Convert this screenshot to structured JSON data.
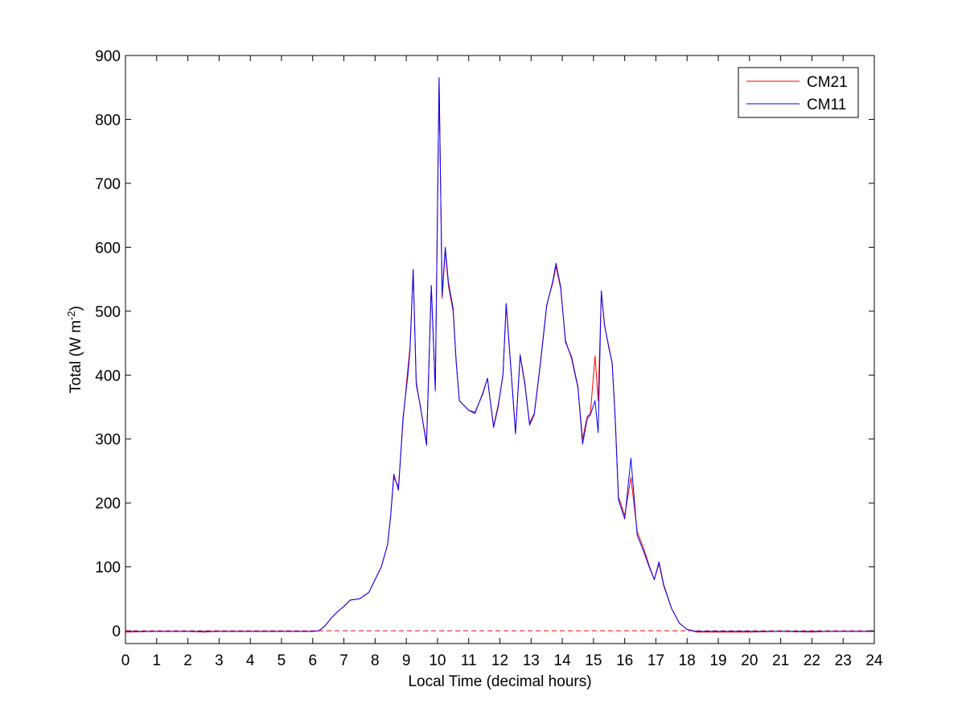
{
  "chart_data": {
    "type": "line",
    "title": "",
    "xlabel": "Local Time (decimal hours)",
    "ylabel_main": "Total (W m",
    "ylabel_sup": "-2",
    "ylabel_close": ")",
    "xlim": [
      0,
      24
    ],
    "ylim": [
      -20,
      900
    ],
    "xticks": [
      0,
      1,
      2,
      3,
      4,
      5,
      6,
      7,
      8,
      9,
      10,
      11,
      12,
      13,
      14,
      15,
      16,
      17,
      18,
      19,
      20,
      21,
      22,
      23,
      24
    ],
    "yticks": [
      0,
      100,
      200,
      300,
      400,
      500,
      600,
      700,
      800,
      900
    ],
    "grid": false,
    "legend_position": "top-right",
    "reference_line": {
      "y": 0,
      "style": "dashed",
      "color": "#ff0000"
    },
    "series": [
      {
        "name": "CM21",
        "color": "#ff0000",
        "points": [
          [
            0,
            -2
          ],
          [
            1,
            -1
          ],
          [
            2,
            -1
          ],
          [
            2.5,
            -2
          ],
          [
            3,
            -1
          ],
          [
            4,
            -1
          ],
          [
            5,
            -1
          ],
          [
            6,
            -1
          ],
          [
            6.2,
            0
          ],
          [
            6.4,
            8
          ],
          [
            6.6,
            20
          ],
          [
            6.8,
            30
          ],
          [
            7,
            38
          ],
          [
            7.2,
            48
          ],
          [
            7.5,
            50
          ],
          [
            7.8,
            60
          ],
          [
            8,
            80
          ],
          [
            8.2,
            100
          ],
          [
            8.4,
            135
          ],
          [
            8.5,
            180
          ],
          [
            8.6,
            240
          ],
          [
            8.75,
            225
          ],
          [
            8.9,
            330
          ],
          [
            9.05,
            410
          ],
          [
            9.12,
            445
          ],
          [
            9.22,
            565
          ],
          [
            9.32,
            390
          ],
          [
            9.45,
            350
          ],
          [
            9.65,
            295
          ],
          [
            9.8,
            540
          ],
          [
            9.93,
            380
          ],
          [
            10.05,
            865
          ],
          [
            10.15,
            520
          ],
          [
            10.25,
            595
          ],
          [
            10.35,
            540
          ],
          [
            10.5,
            500
          ],
          [
            10.6,
            420
          ],
          [
            10.7,
            360
          ],
          [
            11,
            345
          ],
          [
            11.2,
            342
          ],
          [
            11.45,
            370
          ],
          [
            11.6,
            395
          ],
          [
            11.8,
            320
          ],
          [
            11.95,
            355
          ],
          [
            12.1,
            400
          ],
          [
            12.2,
            510
          ],
          [
            12.4,
            380
          ],
          [
            12.5,
            310
          ],
          [
            12.65,
            430
          ],
          [
            12.8,
            385
          ],
          [
            12.95,
            325
          ],
          [
            13.1,
            340
          ],
          [
            13.3,
            420
          ],
          [
            13.5,
            510
          ],
          [
            13.7,
            545
          ],
          [
            13.8,
            570
          ],
          [
            13.95,
            535
          ],
          [
            14.1,
            455
          ],
          [
            14.3,
            425
          ],
          [
            14.5,
            380
          ],
          [
            14.65,
            300
          ],
          [
            14.8,
            335
          ],
          [
            14.9,
            340
          ],
          [
            15.05,
            430
          ],
          [
            15.15,
            360
          ],
          [
            15.25,
            530
          ],
          [
            15.35,
            480
          ],
          [
            15.5,
            440
          ],
          [
            15.6,
            420
          ],
          [
            15.7,
            330
          ],
          [
            15.8,
            210
          ],
          [
            16,
            180
          ],
          [
            16.2,
            240
          ],
          [
            16.4,
            155
          ],
          [
            16.6,
            130
          ],
          [
            16.8,
            100
          ],
          [
            16.95,
            80
          ],
          [
            17.1,
            105
          ],
          [
            17.25,
            70
          ],
          [
            17.5,
            35
          ],
          [
            17.75,
            12
          ],
          [
            18,
            2
          ],
          [
            18.3,
            -2
          ],
          [
            19,
            -2
          ],
          [
            20,
            -2
          ],
          [
            21,
            -1
          ],
          [
            22,
            -2
          ],
          [
            22.5,
            -1
          ],
          [
            24,
            -1
          ]
        ]
      },
      {
        "name": "CM11",
        "color": "#0000ff",
        "points": [
          [
            0,
            -1
          ],
          [
            1,
            -1
          ],
          [
            2,
            -1
          ],
          [
            2.5,
            -1
          ],
          [
            3,
            -1
          ],
          [
            4,
            -1
          ],
          [
            5,
            -1
          ],
          [
            6,
            -1
          ],
          [
            6.2,
            0
          ],
          [
            6.4,
            8
          ],
          [
            6.6,
            20
          ],
          [
            6.8,
            30
          ],
          [
            7,
            38
          ],
          [
            7.2,
            48
          ],
          [
            7.5,
            50
          ],
          [
            7.8,
            60
          ],
          [
            8,
            80
          ],
          [
            8.2,
            100
          ],
          [
            8.4,
            135
          ],
          [
            8.5,
            180
          ],
          [
            8.6,
            245
          ],
          [
            8.75,
            220
          ],
          [
            8.9,
            335
          ],
          [
            9.05,
            400
          ],
          [
            9.12,
            440
          ],
          [
            9.22,
            565
          ],
          [
            9.32,
            385
          ],
          [
            9.45,
            352
          ],
          [
            9.65,
            290
          ],
          [
            9.8,
            540
          ],
          [
            9.93,
            375
          ],
          [
            10.05,
            865
          ],
          [
            10.15,
            525
          ],
          [
            10.25,
            600
          ],
          [
            10.35,
            545
          ],
          [
            10.5,
            505
          ],
          [
            10.6,
            420
          ],
          [
            10.7,
            360
          ],
          [
            11,
            345
          ],
          [
            11.2,
            340
          ],
          [
            11.45,
            372
          ],
          [
            11.6,
            395
          ],
          [
            11.8,
            318
          ],
          [
            11.95,
            352
          ],
          [
            12.1,
            402
          ],
          [
            12.2,
            512
          ],
          [
            12.4,
            378
          ],
          [
            12.5,
            308
          ],
          [
            12.65,
            432
          ],
          [
            12.8,
            388
          ],
          [
            12.95,
            322
          ],
          [
            13.1,
            338
          ],
          [
            13.3,
            418
          ],
          [
            13.5,
            508
          ],
          [
            13.7,
            548
          ],
          [
            13.8,
            575
          ],
          [
            13.95,
            538
          ],
          [
            14.1,
            452
          ],
          [
            14.3,
            428
          ],
          [
            14.5,
            382
          ],
          [
            14.65,
            292
          ],
          [
            14.8,
            332
          ],
          [
            14.9,
            338
          ],
          [
            15.05,
            360
          ],
          [
            15.15,
            310
          ],
          [
            15.25,
            532
          ],
          [
            15.35,
            478
          ],
          [
            15.5,
            442
          ],
          [
            15.6,
            418
          ],
          [
            15.7,
            328
          ],
          [
            15.8,
            205
          ],
          [
            16,
            175
          ],
          [
            16.2,
            270
          ],
          [
            16.4,
            150
          ],
          [
            16.6,
            125
          ],
          [
            16.8,
            98
          ],
          [
            16.95,
            80
          ],
          [
            17.1,
            108
          ],
          [
            17.25,
            72
          ],
          [
            17.5,
            35
          ],
          [
            17.75,
            12
          ],
          [
            18,
            2
          ],
          [
            18.3,
            -1
          ],
          [
            19,
            -1
          ],
          [
            20,
            -1
          ],
          [
            21,
            -1
          ],
          [
            22,
            -1
          ],
          [
            22.5,
            -1
          ],
          [
            24,
            -1
          ]
        ]
      }
    ]
  }
}
